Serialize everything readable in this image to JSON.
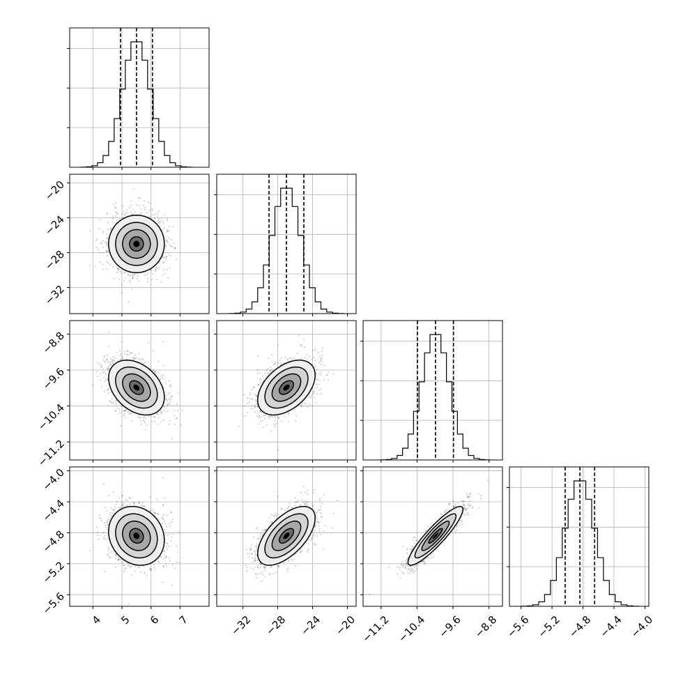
{
  "colors": {
    "axes": "#000000",
    "grid": "#b0b0b0",
    "background": "#ffffff",
    "hist_line": "#000000",
    "contour_line": "#000000",
    "scatter": "#000000"
  },
  "chart_data": {
    "type": "corner",
    "grid": true,
    "parameters": [
      {
        "range": [
          3.2,
          8.0
        ],
        "ticks": [
          4,
          5,
          6,
          7
        ],
        "tick_labels": [
          "4",
          "5",
          "6",
          "7"
        ],
        "mean": 5.5,
        "sigma": 0.48,
        "quantiles": [
          4.95,
          5.5,
          6.05
        ]
      },
      {
        "range": [
          -35.0,
          -19.0
        ],
        "ticks": [
          -32,
          -28,
          -24,
          -20
        ],
        "tick_labels": [
          "−32",
          "−28",
          "−24",
          "−20"
        ],
        "mean": -27.0,
        "sigma": 1.65,
        "quantiles": [
          -29.0,
          -27.0,
          -25.0
        ]
      },
      {
        "range": [
          -11.6,
          -8.5
        ],
        "ticks": [
          -11.2,
          -10.4,
          -9.6,
          -8.8
        ],
        "tick_labels": [
          "−11.2",
          "−10.4",
          "−9.6",
          "−8.8"
        ],
        "mean": -9.99,
        "sigma": 0.305,
        "quantiles": [
          -10.39,
          -9.99,
          -9.59
        ]
      },
      {
        "range": [
          -5.75,
          -3.95
        ],
        "ticks": [
          -5.6,
          -5.2,
          -4.8,
          -4.4,
          -4.0
        ],
        "tick_labels": [
          "−5.6",
          "−5.2",
          "−4.8",
          "−4.4",
          "−4.0"
        ],
        "mean": -4.84,
        "sigma": 0.19,
        "quantiles": [
          -5.03,
          -4.84,
          -4.65
        ]
      }
    ],
    "correlations": [
      {
        "i": 1,
        "j": 0,
        "rho": 0.0
      },
      {
        "i": 2,
        "j": 0,
        "rho": -0.35
      },
      {
        "i": 2,
        "j": 1,
        "rho": 0.45
      },
      {
        "i": 3,
        "j": 0,
        "rho": -0.15
      },
      {
        "i": 3,
        "j": 1,
        "rho": 0.6
      },
      {
        "i": 3,
        "j": 2,
        "rho": 0.9
      }
    ],
    "contour_levels_sigma": [
      0.5,
      1.0,
      1.5,
      2.0
    ],
    "hist_bins": 20,
    "scatter_points_per_panel": 1600
  }
}
